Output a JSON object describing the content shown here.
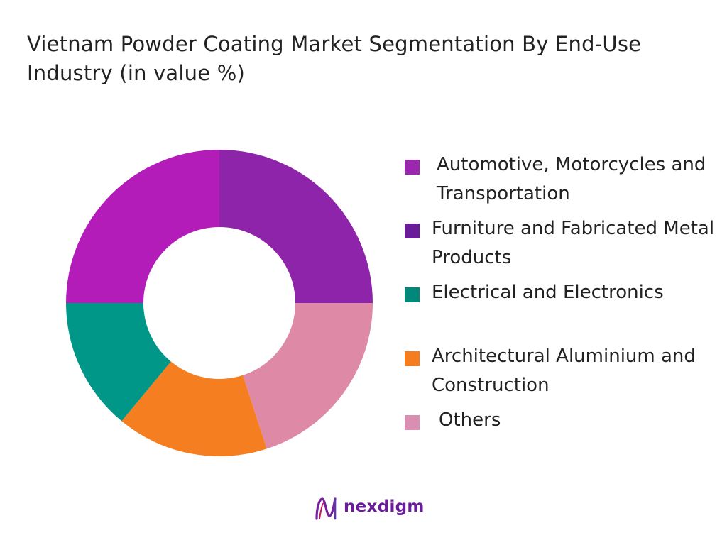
{
  "chart_data": {
    "type": "pie",
    "title": "Vietnam Powder Coating Market Segmentation By End-Use Industry (in value %)",
    "categories": [
      "Automotive, Motorcycles and Transportation",
      "Furniture and Fabricated Metal Products",
      "Electrical and Electronics",
      "Architectural Aluminium and Construction",
      "Others"
    ],
    "values": [
      25,
      25,
      14,
      16,
      20
    ],
    "colors": [
      "#8e24aa",
      "#b31cb8",
      "#009688",
      "#f57f20",
      "#de89a5"
    ],
    "legend_colors": [
      "#9b27af",
      "#6a1b9a",
      "#00897b",
      "#f57c1f",
      "#d98fb1"
    ],
    "donut": true,
    "legend_position": "right"
  },
  "brand": {
    "name": "nexdigm",
    "logo_icon": "nexdigm-logo-icon"
  }
}
